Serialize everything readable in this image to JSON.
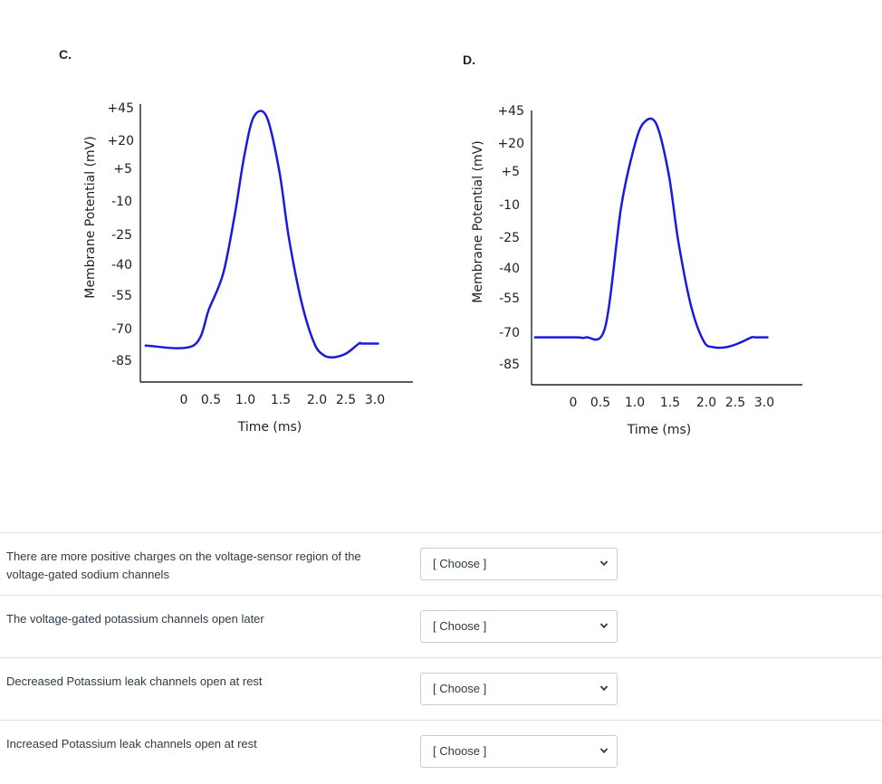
{
  "panels": [
    {
      "letter": "C.",
      "ylabel": "Membrane Potential (mV)",
      "xlabel": "Time (ms)",
      "yticks": [
        "+45",
        "+20",
        "+5",
        "-10",
        "-25",
        "-40",
        "-55",
        "-70",
        "-85"
      ],
      "xticks": [
        "0",
        "0.5",
        "1.0",
        "1.5",
        "2.0",
        "2.5",
        "3.0"
      ]
    },
    {
      "letter": "D.",
      "ylabel": "Membrane Potential (mV)",
      "xlabel": "Time (ms)",
      "yticks": [
        "+45",
        "+20",
        "+5",
        "-10",
        "-25",
        "-40",
        "-55",
        "-70",
        "-85"
      ],
      "xticks": [
        "0",
        "0.5",
        "1.0",
        "1.5",
        "2.0",
        "2.5",
        "3.0"
      ]
    }
  ],
  "chart_data": [
    {
      "type": "line",
      "xlabel": "Time (ms)",
      "ylabel": "Membrane Potential (mV)",
      "line_color": "#1a1adf",
      "series": [
        {
          "x": [
            -0.6,
            0.15,
            0.4,
            0.62,
            0.8,
            0.95,
            1.1,
            1.3,
            1.5,
            1.65,
            1.85,
            2.05,
            2.2,
            2.35,
            2.55,
            2.75,
            2.8,
            3.05
          ],
          "y": [
            -77,
            -77,
            -58,
            -40,
            -10,
            20,
            40,
            40,
            12,
            -22,
            -55,
            -76,
            -82,
            -83,
            -81,
            -76,
            -76,
            -76
          ]
        }
      ]
    },
    {
      "type": "line",
      "xlabel": "Time (ms)",
      "ylabel": "Membrane Potential (mV)",
      "line_color": "#1a1adf",
      "series": [
        {
          "x": [
            -0.6,
            0.05,
            0.2,
            0.5,
            0.75,
            0.95,
            1.1,
            1.3,
            1.5,
            1.65,
            1.85,
            2.05,
            2.2,
            2.4,
            2.6,
            2.8,
            2.85,
            3.05
          ],
          "y": [
            -71,
            -71,
            -71,
            -66,
            -5,
            25,
            38,
            38,
            12,
            -22,
            -55,
            -73,
            -76,
            -76,
            -74,
            -71,
            -71,
            -71
          ]
        }
      ]
    }
  ],
  "questions": [
    {
      "text": "There are more positive charges on the voltage-sensor region of the voltage-gated sodium channels",
      "select": "[ Choose ]"
    },
    {
      "text": "The voltage-gated potassium channels open later",
      "select": "[ Choose ]"
    },
    {
      "text": "Decreased Potassium leak channels open at rest",
      "select": "[ Choose ]"
    },
    {
      "text": "Increased Potassium leak channels open at rest",
      "select": "[ Choose ]"
    }
  ]
}
